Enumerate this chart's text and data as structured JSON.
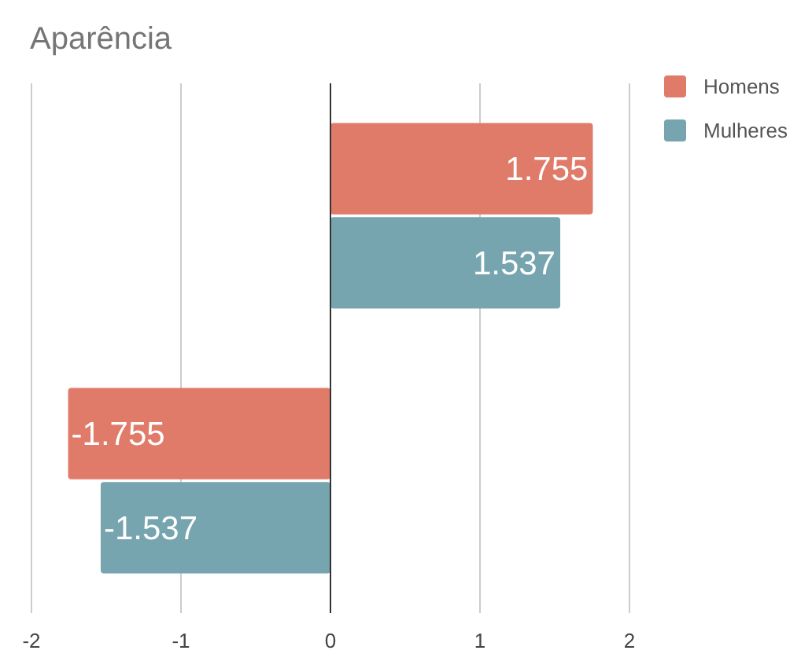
{
  "chart_data": {
    "type": "bar",
    "orientation": "horizontal",
    "title": "Aparência",
    "categories": [
      null,
      null
    ],
    "series": [
      {
        "name": "Homens",
        "color": "#e07b6a",
        "values": [
          1.755,
          -1.755
        ]
      },
      {
        "name": "Mulheres",
        "color": "#76a5af",
        "values": [
          1.537,
          -1.537
        ]
      }
    ],
    "xlim": [
      -2,
      2
    ],
    "xticks": [
      -2,
      -1,
      0,
      1,
      2
    ],
    "grid": "x",
    "legend": "top right",
    "data_labels": true
  }
}
